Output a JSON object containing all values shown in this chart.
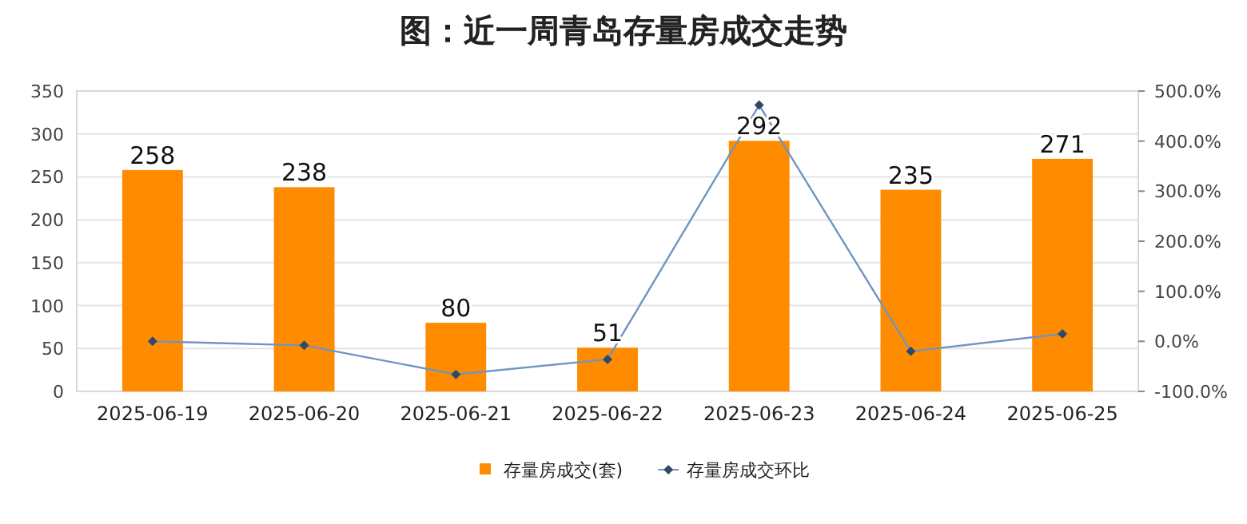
{
  "chart_data": {
    "type": "bar",
    "title": "图：近一周青岛存量房成交走势",
    "categories": [
      "2025-06-19",
      "2025-06-20",
      "2025-06-21",
      "2025-06-22",
      "2025-06-23",
      "2025-06-24",
      "2025-06-25"
    ],
    "series": [
      {
        "name": "存量房成交(套)",
        "color": "#ff8c00",
        "values": [
          258,
          238,
          80,
          51,
          292,
          235,
          271
        ],
        "value_labels": [
          "258",
          "238",
          "80",
          "51",
          "292",
          "235",
          "271"
        ]
      },
      {
        "name": "存量房成交环比",
        "type": "line",
        "axis": "y2",
        "color": "#6f94c4",
        "values": [
          0,
          -8,
          -66,
          -36,
          472,
          -20,
          15
        ]
      }
    ],
    "ylim": [
      0,
      350
    ],
    "yticks": [
      0,
      50,
      100,
      150,
      200,
      250,
      300,
      350
    ],
    "y2lim": [
      -100,
      500
    ],
    "y2ticks": [
      {
        "value": -100,
        "label": "-100.0%"
      },
      {
        "value": 0,
        "label": "0.0%"
      },
      {
        "value": 100,
        "label": "100.0%"
      },
      {
        "value": 200,
        "label": "200.0%"
      },
      {
        "value": 300,
        "label": "300.0%"
      },
      {
        "value": 400,
        "label": "400.0%"
      },
      {
        "value": 500,
        "label": "500.0%"
      }
    ],
    "grid": "y",
    "legend": "bottom",
    "marker": "diamond",
    "line_style": "solid"
  }
}
